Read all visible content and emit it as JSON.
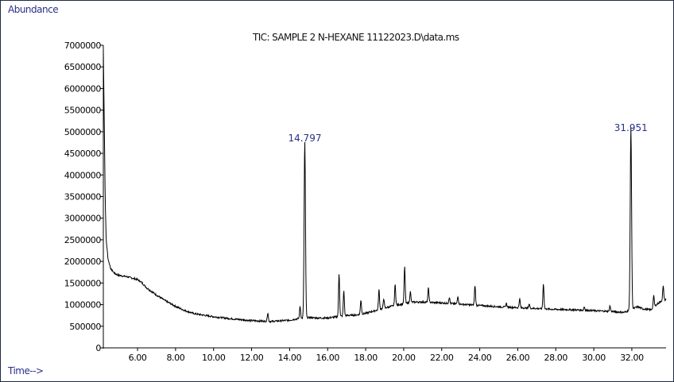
{
  "chart_data": {
    "type": "line",
    "title": "TIC: SAMPLE 2 N-HEXANE 11122023.D\\data.ms",
    "ylabel": "Abundance",
    "xlabel": "Time-->",
    "xlim": [
      4.2,
      33.8
    ],
    "ylim": [
      0,
      7000000
    ],
    "x_ticks": [
      "6.00",
      "8.00",
      "10.00",
      "12.00",
      "14.00",
      "16.00",
      "18.00",
      "20.00",
      "22.00",
      "24.00",
      "26.00",
      "28.00",
      "30.00",
      "32.00"
    ],
    "x_tick_values": [
      6,
      8,
      10,
      12,
      14,
      16,
      18,
      20,
      22,
      24,
      26,
      28,
      30,
      32
    ],
    "y_ticks": [
      "0",
      "500000",
      "1000000",
      "1500000",
      "2000000",
      "2500000",
      "3000000",
      "3500000",
      "4000000",
      "4500000",
      "5000000",
      "5500000",
      "6000000",
      "6500000",
      "7000000"
    ],
    "y_tick_values": [
      0,
      500000,
      1000000,
      1500000,
      2000000,
      2500000,
      3000000,
      3500000,
      4000000,
      4500000,
      5000000,
      5500000,
      6000000,
      6500000,
      7000000
    ],
    "series": [
      {
        "baseline": [
          [
            4.2,
            6900000
          ],
          [
            4.25,
            5200000
          ],
          [
            4.3,
            3400000
          ],
          [
            4.35,
            2500000
          ],
          [
            4.45,
            2050000
          ],
          [
            4.6,
            1820000
          ],
          [
            4.8,
            1720000
          ],
          [
            5.0,
            1680000
          ],
          [
            5.5,
            1640000
          ],
          [
            6.0,
            1580000
          ],
          [
            6.2,
            1520000
          ],
          [
            6.5,
            1380000
          ],
          [
            7.0,
            1220000
          ],
          [
            7.5,
            1080000
          ],
          [
            8.0,
            960000
          ],
          [
            8.5,
            860000
          ],
          [
            9.0,
            790000
          ],
          [
            10.0,
            720000
          ],
          [
            11.0,
            670000
          ],
          [
            12.0,
            630000
          ],
          [
            13.0,
            610000
          ],
          [
            14.0,
            640000
          ],
          [
            14.5,
            680000
          ],
          [
            15.0,
            700000
          ],
          [
            15.5,
            690000
          ],
          [
            16.0,
            690000
          ],
          [
            16.5,
            720000
          ],
          [
            17.0,
            750000
          ],
          [
            17.5,
            760000
          ],
          [
            18.0,
            800000
          ],
          [
            18.5,
            860000
          ],
          [
            19.0,
            920000
          ],
          [
            19.5,
            980000
          ],
          [
            20.0,
            1020000
          ],
          [
            20.5,
            1060000
          ],
          [
            21.0,
            1060000
          ],
          [
            22.0,
            1040000
          ],
          [
            23.0,
            1010000
          ],
          [
            24.0,
            980000
          ],
          [
            25.0,
            950000
          ],
          [
            26.0,
            930000
          ],
          [
            27.0,
            910000
          ],
          [
            28.0,
            890000
          ],
          [
            29.0,
            880000
          ],
          [
            30.0,
            860000
          ],
          [
            31.0,
            840000
          ],
          [
            31.6,
            820000
          ],
          [
            32.3,
            950000
          ],
          [
            32.6,
            900000
          ],
          [
            33.0,
            880000
          ],
          [
            33.3,
            1000000
          ],
          [
            33.6,
            1100000
          ],
          [
            33.8,
            1120000
          ]
        ],
        "peaks": [
          [
            12.85,
            200000
          ],
          [
            14.55,
            280000
          ],
          [
            14.797,
            4080000
          ],
          [
            16.6,
            1000000
          ],
          [
            16.85,
            580000
          ],
          [
            17.75,
            330000
          ],
          [
            18.7,
            460000
          ],
          [
            18.95,
            230000
          ],
          [
            19.55,
            480000
          ],
          [
            20.05,
            850000
          ],
          [
            20.35,
            250000
          ],
          [
            21.3,
            330000
          ],
          [
            22.4,
            140000
          ],
          [
            22.85,
            180000
          ],
          [
            23.75,
            460000
          ],
          [
            25.4,
            90000
          ],
          [
            26.1,
            210000
          ],
          [
            26.6,
            100000
          ],
          [
            27.35,
            580000
          ],
          [
            29.5,
            80000
          ],
          [
            30.85,
            130000
          ],
          [
            31.951,
            4200000
          ],
          [
            33.15,
            260000
          ],
          [
            33.65,
            320000
          ]
        ]
      }
    ],
    "annotations": [
      {
        "x": 14.797,
        "y": 4780000,
        "label": "14.797"
      },
      {
        "x": 31.951,
        "y": 5020000,
        "label": "31.951"
      }
    ]
  }
}
